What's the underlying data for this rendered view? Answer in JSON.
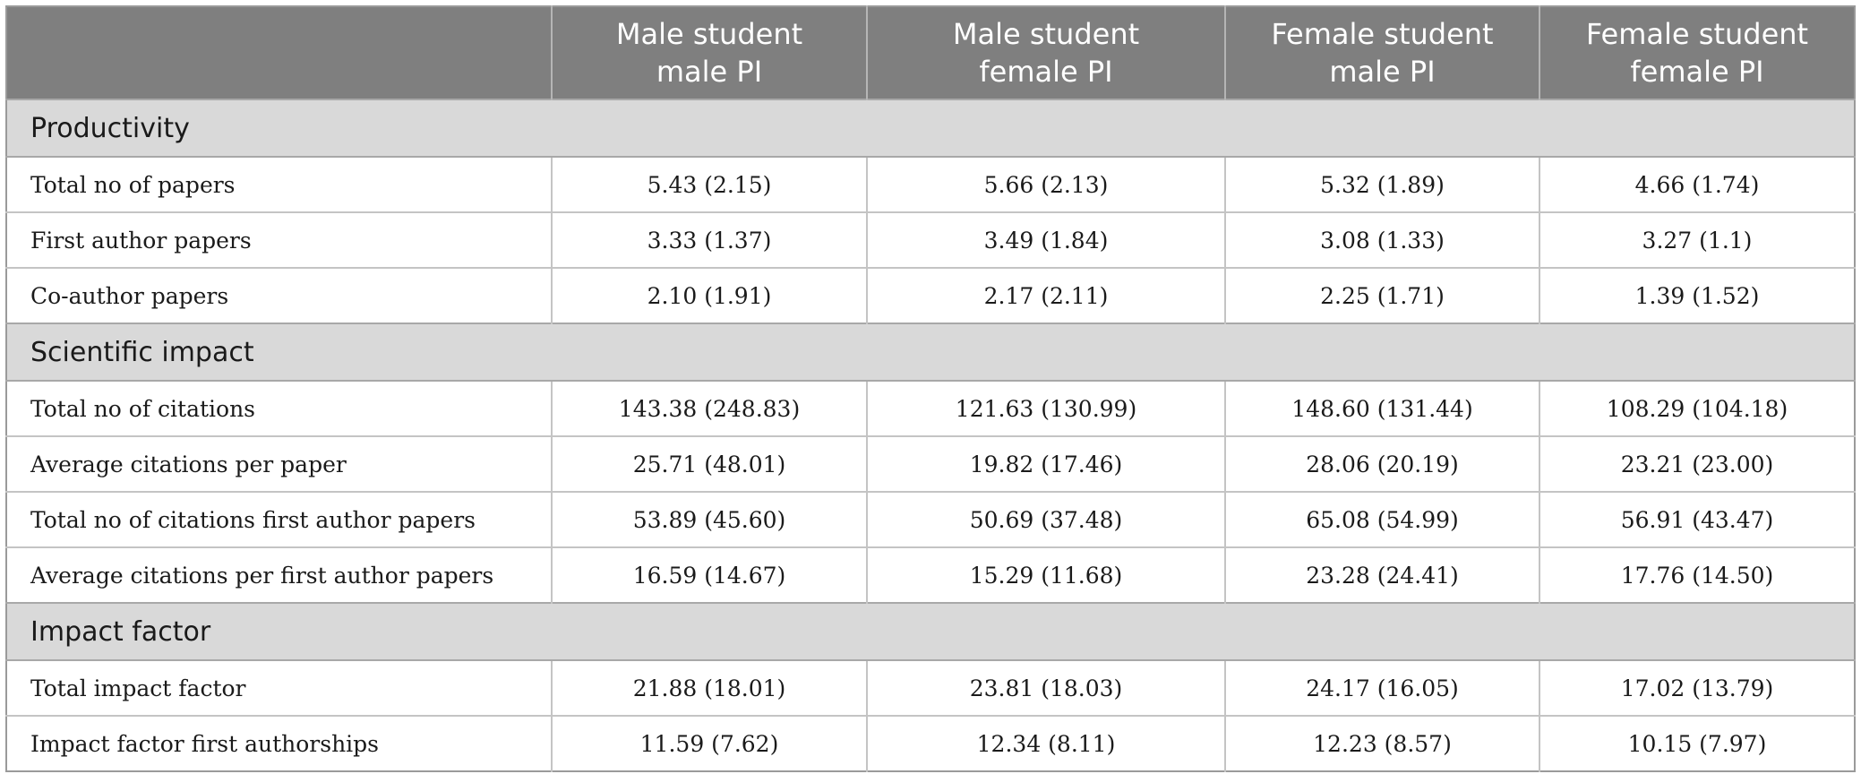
{
  "table": {
    "headers": [
      "",
      "Male student\nmale PI",
      "Male student\nfemale PI",
      "Female student\nmale PI",
      "Female student\nfemale PI"
    ],
    "sections": [
      {
        "title": "Productivity",
        "rows": [
          {
            "label": "Total no of papers",
            "values": [
              "5.43 (2.15)",
              "5.66 (2.13)",
              "5.32 (1.89)",
              "4.66 (1.74)"
            ]
          },
          {
            "label": "First author papers",
            "values": [
              "3.33 (1.37)",
              "3.49 (1.84)",
              "3.08 (1.33)",
              "3.27 (1.1)"
            ]
          },
          {
            "label": "Co-author papers",
            "values": [
              "2.10 (1.91)",
              "2.17 (2.11)",
              "2.25 (1.71)",
              "1.39 (1.52)"
            ]
          }
        ]
      },
      {
        "title": "Scientific impact",
        "rows": [
          {
            "label": "Total no of citations",
            "values": [
              "143.38 (248.83)",
              "121.63 (130.99)",
              "148.60 (131.44)",
              "108.29 (104.18)"
            ]
          },
          {
            "label": "Average citations per paper",
            "values": [
              "25.71 (48.01)",
              "19.82 (17.46)",
              "28.06 (20.19)",
              "23.21 (23.00)"
            ]
          },
          {
            "label": "Total no of citations first author papers",
            "values": [
              "53.89 (45.60)",
              "50.69 (37.48)",
              "65.08 (54.99)",
              "56.91 (43.47)"
            ]
          },
          {
            "label": "Average citations per first author papers",
            "values": [
              "16.59 (14.67)",
              "15.29 (11.68)",
              "23.28 (24.41)",
              "17.76 (14.50)"
            ]
          }
        ]
      },
      {
        "title": "Impact factor",
        "rows": [
          {
            "label": "Total impact factor",
            "values": [
              "21.88 (18.01)",
              "23.81 (18.03)",
              "24.17 (16.05)",
              "17.02 (13.79)"
            ]
          },
          {
            "label": "Impact factor first authorships",
            "values": [
              "11.59 (7.62)",
              "12.34 (8.11)",
              "12.23 (8.57)",
              "10.15 (7.97)"
            ]
          }
        ]
      }
    ]
  }
}
